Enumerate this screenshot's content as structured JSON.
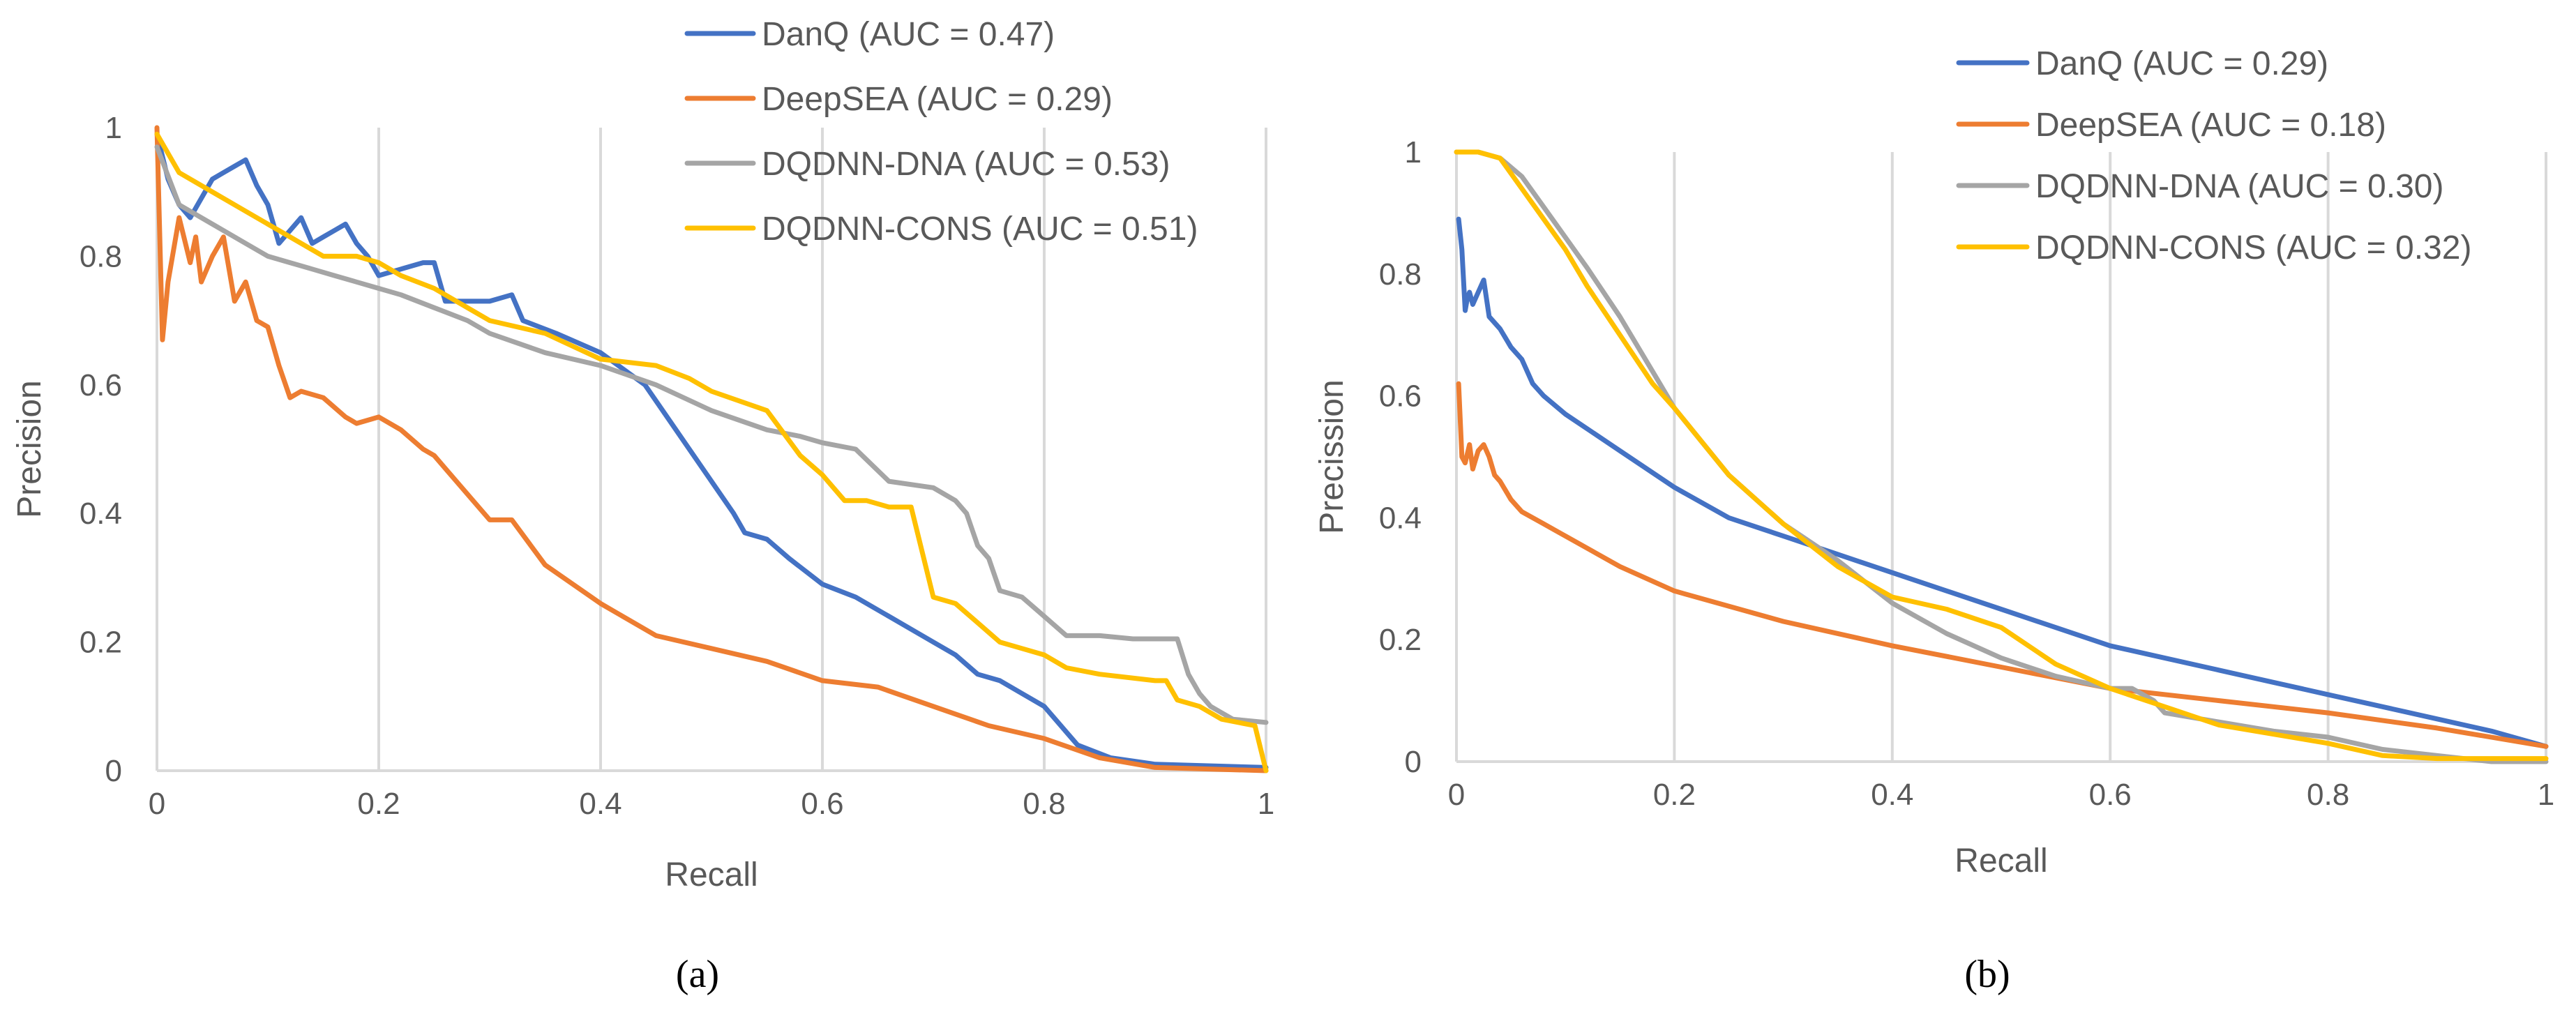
{
  "chart_data": [
    {
      "type": "line",
      "panel_label": "(a)",
      "xlabel": "Recall",
      "ylabel": "Precision",
      "xlim": [
        0,
        1
      ],
      "ylim": [
        0,
        1
      ],
      "xticks": [
        "0",
        "0.2",
        "0.4",
        "0.6",
        "0.8",
        "1"
      ],
      "yticks": [
        "0",
        "0.2",
        "0.4",
        "0.6",
        "0.8",
        "1"
      ],
      "grid": "vertical",
      "legend": "top-right",
      "series": [
        {
          "name": "DanQ (AUC = 0.47)",
          "color": "#4472C4",
          "x": [
            0,
            0.01,
            0.02,
            0.03,
            0.04,
            0.05,
            0.06,
            0.07,
            0.08,
            0.09,
            0.1,
            0.11,
            0.12,
            0.13,
            0.14,
            0.15,
            0.16,
            0.17,
            0.18,
            0.19,
            0.2,
            0.22,
            0.24,
            0.25,
            0.26,
            0.28,
            0.3,
            0.32,
            0.33,
            0.36,
            0.4,
            0.44,
            0.46,
            0.48,
            0.5,
            0.52,
            0.53,
            0.55,
            0.57,
            0.6,
            0.63,
            0.66,
            0.7,
            0.72,
            0.74,
            0.76,
            0.78,
            0.8,
            0.82,
            0.83,
            0.86,
            0.9,
            1.0
          ],
          "y": [
            0.99,
            0.92,
            0.88,
            0.86,
            0.89,
            0.92,
            0.93,
            0.94,
            0.95,
            0.91,
            0.88,
            0.82,
            0.84,
            0.86,
            0.82,
            0.83,
            0.84,
            0.85,
            0.82,
            0.8,
            0.77,
            0.78,
            0.79,
            0.79,
            0.73,
            0.73,
            0.73,
            0.74,
            0.7,
            0.68,
            0.65,
            0.6,
            0.55,
            0.5,
            0.45,
            0.4,
            0.37,
            0.36,
            0.33,
            0.29,
            0.27,
            0.24,
            0.2,
            0.18,
            0.15,
            0.14,
            0.12,
            0.1,
            0.06,
            0.04,
            0.02,
            0.01,
            0.005
          ]
        },
        {
          "name": "DeepSEA (AUC = 0.29)",
          "color": "#ED7D31",
          "x": [
            0,
            0.005,
            0.01,
            0.02,
            0.03,
            0.035,
            0.04,
            0.05,
            0.06,
            0.07,
            0.08,
            0.09,
            0.1,
            0.11,
            0.12,
            0.13,
            0.15,
            0.17,
            0.18,
            0.2,
            0.22,
            0.24,
            0.25,
            0.27,
            0.3,
            0.32,
            0.35,
            0.4,
            0.45,
            0.5,
            0.55,
            0.6,
            0.65,
            0.7,
            0.75,
            0.8,
            0.85,
            0.9,
            1.0
          ],
          "y": [
            1.0,
            0.67,
            0.76,
            0.86,
            0.79,
            0.83,
            0.76,
            0.8,
            0.83,
            0.73,
            0.76,
            0.7,
            0.69,
            0.63,
            0.58,
            0.59,
            0.58,
            0.55,
            0.54,
            0.55,
            0.53,
            0.5,
            0.49,
            0.45,
            0.39,
            0.39,
            0.32,
            0.26,
            0.21,
            0.19,
            0.17,
            0.14,
            0.13,
            0.1,
            0.07,
            0.05,
            0.02,
            0.005,
            0.0
          ]
        },
        {
          "name": "DQDNN-DNA (AUC = 0.53)",
          "color": "#A5A5A5",
          "x": [
            0,
            0.02,
            0.05,
            0.08,
            0.1,
            0.12,
            0.14,
            0.16,
            0.18,
            0.2,
            0.22,
            0.25,
            0.28,
            0.3,
            0.35,
            0.4,
            0.45,
            0.5,
            0.55,
            0.58,
            0.6,
            0.63,
            0.66,
            0.7,
            0.72,
            0.73,
            0.74,
            0.75,
            0.76,
            0.78,
            0.8,
            0.82,
            0.85,
            0.88,
            0.92,
            0.93,
            0.94,
            0.95,
            0.96,
            0.97,
            1.0
          ],
          "y": [
            0.97,
            0.88,
            0.85,
            0.82,
            0.8,
            0.79,
            0.78,
            0.77,
            0.76,
            0.75,
            0.74,
            0.72,
            0.7,
            0.68,
            0.65,
            0.63,
            0.6,
            0.56,
            0.53,
            0.52,
            0.51,
            0.5,
            0.45,
            0.44,
            0.42,
            0.4,
            0.35,
            0.33,
            0.28,
            0.27,
            0.24,
            0.21,
            0.21,
            0.205,
            0.205,
            0.15,
            0.12,
            0.1,
            0.09,
            0.08,
            0.075
          ]
        },
        {
          "name": "DQDNN-CONS (AUC = 0.51)",
          "color": "#FFC000",
          "x": [
            0,
            0.02,
            0.05,
            0.08,
            0.1,
            0.12,
            0.15,
            0.18,
            0.2,
            0.22,
            0.25,
            0.28,
            0.3,
            0.35,
            0.4,
            0.45,
            0.48,
            0.5,
            0.55,
            0.58,
            0.6,
            0.62,
            0.64,
            0.66,
            0.68,
            0.69,
            0.7,
            0.72,
            0.74,
            0.76,
            0.78,
            0.8,
            0.82,
            0.85,
            0.9,
            0.91,
            0.92,
            0.94,
            0.96,
            0.99,
            1.0
          ],
          "y": [
            0.99,
            0.93,
            0.9,
            0.87,
            0.85,
            0.83,
            0.8,
            0.8,
            0.79,
            0.77,
            0.75,
            0.72,
            0.7,
            0.68,
            0.64,
            0.63,
            0.61,
            0.59,
            0.56,
            0.49,
            0.46,
            0.42,
            0.42,
            0.41,
            0.41,
            0.34,
            0.27,
            0.26,
            0.23,
            0.2,
            0.19,
            0.18,
            0.16,
            0.15,
            0.14,
            0.14,
            0.11,
            0.1,
            0.08,
            0.07,
            0.0
          ]
        }
      ]
    },
    {
      "type": "line",
      "panel_label": "(b)",
      "xlabel": "Recall",
      "ylabel": "Precission",
      "xlim": [
        0,
        1
      ],
      "ylim": [
        0,
        1
      ],
      "xticks": [
        "0",
        "0.2",
        "0.4",
        "0.6",
        "0.8",
        "1"
      ],
      "yticks": [
        "0",
        "0.2",
        "0.4",
        "0.6",
        "0.8",
        "1"
      ],
      "grid": "vertical",
      "legend": "top-right",
      "series": [
        {
          "name": "DanQ (AUC = 0.29)",
          "color": "#4472C4",
          "x": [
            0.002,
            0.005,
            0.008,
            0.01,
            0.012,
            0.015,
            0.02,
            0.025,
            0.03,
            0.04,
            0.05,
            0.06,
            0.07,
            0.08,
            0.1,
            0.15,
            0.2,
            0.25,
            0.3,
            0.35,
            0.4,
            0.45,
            0.5,
            0.55,
            0.6,
            0.65,
            0.7,
            0.75,
            0.8,
            0.85,
            0.9,
            0.95,
            1.0
          ],
          "y": [
            0.89,
            0.84,
            0.74,
            0.76,
            0.77,
            0.75,
            0.77,
            0.79,
            0.73,
            0.71,
            0.68,
            0.66,
            0.62,
            0.6,
            0.57,
            0.51,
            0.45,
            0.4,
            0.37,
            0.34,
            0.31,
            0.28,
            0.25,
            0.22,
            0.19,
            0.17,
            0.15,
            0.13,
            0.11,
            0.09,
            0.07,
            0.05,
            0.025
          ]
        },
        {
          "name": "DeepSEA (AUC = 0.18)",
          "color": "#ED7D31",
          "x": [
            0.002,
            0.005,
            0.008,
            0.012,
            0.015,
            0.02,
            0.025,
            0.03,
            0.035,
            0.04,
            0.05,
            0.06,
            0.08,
            0.1,
            0.15,
            0.2,
            0.3,
            0.4,
            0.5,
            0.6,
            0.7,
            0.8,
            0.9,
            1.0
          ],
          "y": [
            0.62,
            0.5,
            0.49,
            0.52,
            0.48,
            0.51,
            0.52,
            0.5,
            0.47,
            0.46,
            0.43,
            0.41,
            0.39,
            0.37,
            0.32,
            0.28,
            0.23,
            0.19,
            0.155,
            0.12,
            0.1,
            0.08,
            0.055,
            0.025
          ]
        },
        {
          "name": "DQDNN-DNA (AUC = 0.30)",
          "color": "#A5A5A5",
          "x": [
            0,
            0.02,
            0.04,
            0.06,
            0.08,
            0.1,
            0.12,
            0.15,
            0.18,
            0.2,
            0.25,
            0.3,
            0.35,
            0.4,
            0.45,
            0.5,
            0.55,
            0.6,
            0.62,
            0.64,
            0.65,
            0.7,
            0.75,
            0.8,
            0.85,
            0.9,
            0.95,
            1.0
          ],
          "y": [
            1.0,
            1.0,
            0.99,
            0.96,
            0.91,
            0.86,
            0.81,
            0.73,
            0.64,
            0.58,
            0.47,
            0.39,
            0.33,
            0.26,
            0.21,
            0.17,
            0.14,
            0.12,
            0.12,
            0.1,
            0.08,
            0.065,
            0.05,
            0.04,
            0.02,
            0.01,
            0.0,
            0.0
          ]
        },
        {
          "name": "DQDNN-CONS (AUC = 0.32)",
          "color": "#FFC000",
          "x": [
            0,
            0.02,
            0.04,
            0.06,
            0.08,
            0.1,
            0.12,
            0.15,
            0.18,
            0.2,
            0.25,
            0.3,
            0.35,
            0.4,
            0.45,
            0.5,
            0.55,
            0.6,
            0.65,
            0.7,
            0.75,
            0.8,
            0.85,
            0.9,
            0.95,
            1.0
          ],
          "y": [
            1.0,
            1.0,
            0.99,
            0.94,
            0.89,
            0.84,
            0.78,
            0.7,
            0.62,
            0.58,
            0.47,
            0.39,
            0.32,
            0.27,
            0.25,
            0.22,
            0.16,
            0.12,
            0.09,
            0.06,
            0.045,
            0.03,
            0.01,
            0.005,
            0.005,
            0.005
          ]
        }
      ]
    }
  ]
}
